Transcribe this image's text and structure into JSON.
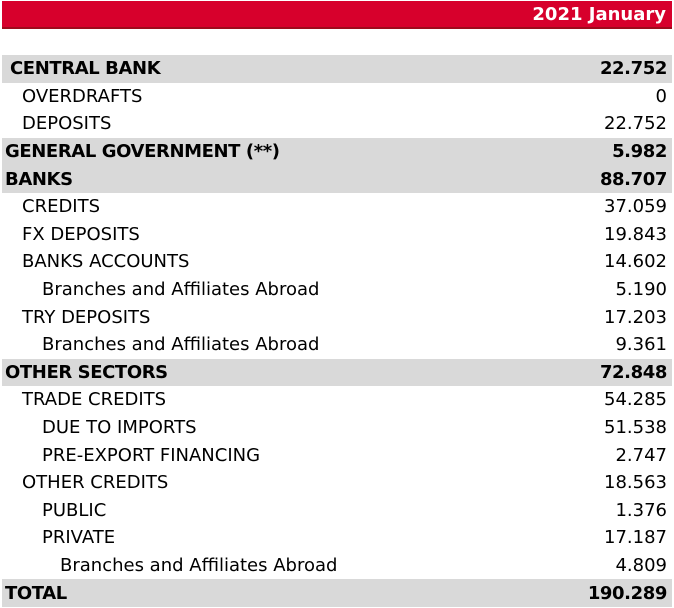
{
  "header": {
    "title": "2021 January",
    "color": "#d7002c"
  },
  "rows": [
    {
      "label": "CENTRAL BANK",
      "value": "22.752"
    },
    {
      "label": "OVERDRAFTS",
      "value": "0"
    },
    {
      "label": "DEPOSITS",
      "value": "22.752"
    },
    {
      "label": "GENERAL GOVERNMENT (**)",
      "value": "5.982"
    },
    {
      "label": "BANKS",
      "value": "88.707"
    },
    {
      "label": "CREDITS",
      "value": "37.059"
    },
    {
      "label": "FX DEPOSITS",
      "value": "19.843"
    },
    {
      "label": "BANKS ACCOUNTS",
      "value": "14.602"
    },
    {
      "label": "Branches and Affiliates Abroad",
      "value": "5.190"
    },
    {
      "label": "TRY DEPOSITS",
      "value": "17.203"
    },
    {
      "label": "Branches and Affiliates Abroad",
      "value": "9.361"
    },
    {
      "label": "OTHER SECTORS",
      "value": "72.848"
    },
    {
      "label": "TRADE CREDITS",
      "value": "54.285"
    },
    {
      "label": "DUE TO IMPORTS",
      "value": "51.538"
    },
    {
      "label": "PRE-EXPORT FINANCING",
      "value": "2.747"
    },
    {
      "label": "OTHER CREDITS",
      "value": "18.563"
    },
    {
      "label": "PUBLIC",
      "value": "1.376"
    },
    {
      "label": "PRIVATE",
      "value": "17.187"
    },
    {
      "label": "Branches and Affiliates Abroad",
      "value": "4.809"
    },
    {
      "label": "TOTAL",
      "value": "190.289"
    }
  ]
}
